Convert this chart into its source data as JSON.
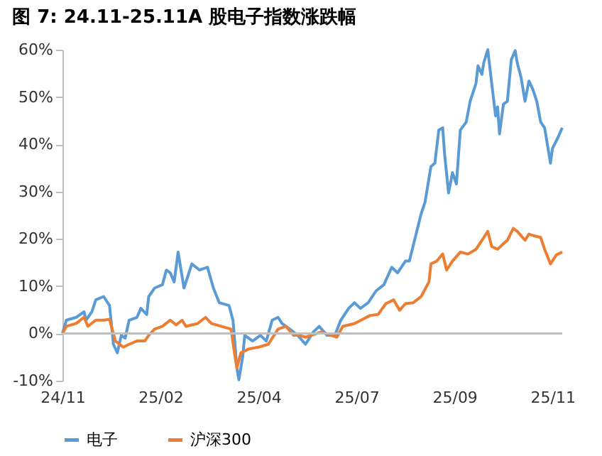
{
  "chart_data": {
    "type": "line",
    "title": "图 7: 24.11-25.11A 股电子指数涨跌幅",
    "categories": [
      "24/11",
      null,
      null,
      null,
      null,
      null,
      null,
      null,
      null,
      null,
      null,
      null,
      null,
      null,
      null,
      null,
      null,
      null,
      null,
      null,
      null,
      null,
      null,
      null,
      null,
      null,
      null,
      null,
      null,
      null,
      null,
      null,
      null,
      null,
      null,
      null,
      null,
      null,
      null,
      null,
      null,
      null,
      null,
      null,
      null,
      null,
      null,
      null,
      null,
      null,
      "25/02",
      null,
      null,
      null,
      null,
      null,
      null,
      null,
      null,
      null,
      null,
      null,
      null,
      null,
      null,
      null,
      null,
      null,
      null,
      null,
      null,
      null,
      null,
      null,
      null,
      null,
      null,
      null,
      null,
      null,
      null,
      null,
      null,
      null,
      null,
      null,
      null,
      null,
      null,
      null,
      null,
      null,
      null,
      null,
      null,
      null,
      null,
      null,
      null,
      null,
      "25/04",
      null,
      null,
      null,
      null,
      null,
      null,
      null,
      null,
      null,
      null,
      null,
      null,
      null,
      null,
      null,
      null,
      null,
      null,
      null,
      null,
      null,
      null,
      null,
      null,
      null,
      null,
      null,
      null,
      null,
      null,
      null,
      null,
      null,
      null,
      null,
      null,
      null,
      null,
      null,
      null,
      null,
      null,
      null,
      null,
      null,
      null,
      null,
      null,
      null,
      "25/07",
      null,
      null,
      null,
      null,
      null,
      null,
      null,
      null,
      null,
      null,
      null,
      null,
      null,
      null,
      null,
      null,
      null,
      null,
      null,
      null,
      null,
      null,
      null,
      null,
      null,
      null,
      null,
      null,
      null,
      null,
      null,
      null,
      null,
      null,
      null,
      null,
      null,
      null,
      null,
      null,
      null,
      null,
      null,
      null,
      null,
      null,
      null,
      null,
      null,
      "25/09",
      null,
      null,
      null,
      null,
      null,
      null,
      null,
      null,
      null,
      null,
      null,
      null,
      null,
      null,
      null,
      null,
      null,
      null,
      null,
      null,
      null,
      null,
      null,
      null,
      null,
      null,
      null,
      null,
      null,
      null,
      null,
      null,
      null,
      null,
      null,
      null,
      null,
      null,
      null,
      null,
      null,
      null,
      null,
      null,
      null,
      null,
      null,
      null,
      null,
      "25/11",
      null,
      null,
      null,
      null,
      null
    ],
    "ylim": [
      -10,
      60
    ],
    "yticks": [
      {
        "value": -10,
        "label": "-10%"
      },
      {
        "value": 0,
        "label": "0%"
      },
      {
        "value": 10,
        "label": "10%"
      },
      {
        "value": 20,
        "label": "20%"
      },
      {
        "value": 30,
        "label": "30%"
      },
      {
        "value": 40,
        "label": "40%"
      },
      {
        "value": 50,
        "label": "50%"
      },
      {
        "value": 60,
        "label": "60%"
      }
    ],
    "grid": false,
    "legend": "bottom",
    "line_style": "solid",
    "marker": "none",
    "ref_lines": [
      {
        "axis": "y",
        "value": 0,
        "color": "#bfbfbf"
      }
    ],
    "series": [
      {
        "name": "电子",
        "color": "#5b9bd5",
        "values": [
          0,
          null,
          2.8,
          null,
          null,
          null,
          null,
          3.4,
          null,
          null,
          null,
          4.6,
          2.8,
          null,
          null,
          4.6,
          null,
          7.1,
          null,
          null,
          null,
          7.8,
          null,
          null,
          5.9,
          null,
          -2.3,
          null,
          -4.1,
          null,
          -0.4,
          null,
          -1,
          null,
          2.8,
          null,
          null,
          null,
          3.4,
          null,
          5.3,
          null,
          null,
          4,
          7.8,
          null,
          null,
          9.6,
          null,
          null,
          null,
          10.3,
          null,
          13.4,
          null,
          12.8,
          null,
          10.9,
          null,
          17.2,
          null,
          null,
          9.6,
          null,
          null,
          null,
          14.7,
          null,
          null,
          null,
          13.4,
          null,
          null,
          null,
          14,
          null,
          null,
          9.6,
          null,
          null,
          6.5,
          null,
          null,
          null,
          null,
          5.9,
          null,
          2.8,
          null,
          -7.3,
          -9.8,
          null,
          -4.8,
          -0.4,
          null,
          null,
          null,
          -1.6,
          null,
          null,
          null,
          -0.4,
          null,
          null,
          -1.6,
          null,
          null,
          2.8,
          null,
          null,
          3.4,
          null,
          2.1,
          null,
          null,
          null,
          0.9,
          null,
          null,
          null,
          -0.4,
          null,
          null,
          null,
          -2.3,
          null,
          null,
          null,
          0.3,
          null,
          null,
          1.5,
          null,
          null,
          null,
          -0.4,
          null,
          null,
          null,
          -0.4,
          null,
          null,
          2.8,
          null,
          null,
          null,
          5.3,
          null,
          null,
          6.5,
          null,
          null,
          5.3,
          null,
          null,
          null,
          6.5,
          null,
          null,
          null,
          9,
          null,
          null,
          null,
          10.3,
          null,
          null,
          null,
          14,
          null,
          null,
          12.8,
          null,
          null,
          null,
          15.3,
          null,
          15.3,
          null,
          null,
          20.3,
          null,
          null,
          25.3,
          null,
          27.8,
          null,
          null,
          35.3,
          null,
          36,
          null,
          43,
          null,
          43.5,
          37.8,
          null,
          29.7,
          null,
          34,
          null,
          31.6,
          null,
          43,
          null,
          null,
          44.7,
          null,
          49.1,
          null,
          null,
          52.9,
          56.6,
          null,
          54.8,
          57.3,
          null,
          60,
          null,
          52.9,
          null,
          46,
          47.9,
          42.2,
          null,
          48.5,
          null,
          49.1,
          null,
          57.9,
          null,
          59.8,
          57.3,
          null,
          54.1,
          null,
          49.1,
          null,
          53.4,
          null,
          51.6,
          null,
          49.1,
          null,
          44.7,
          null,
          43.5,
          null,
          null,
          36,
          39.1,
          null,
          null,
          41.6,
          null,
          43.5
        ]
      },
      {
        "name": "沪深300",
        "color": "#ed7d31",
        "values": [
          0,
          null,
          1.5,
          null,
          null,
          null,
          null,
          2.1,
          null,
          null,
          null,
          3.4,
          null,
          1.5,
          null,
          null,
          null,
          2.8,
          null,
          null,
          null,
          2.8,
          null,
          null,
          3,
          null,
          null,
          -1.6,
          null,
          null,
          null,
          -2.9,
          null,
          null,
          -2.3,
          null,
          null,
          null,
          -1.6,
          null,
          null,
          null,
          -1.6,
          null,
          -0.4,
          null,
          null,
          0.9,
          null,
          null,
          null,
          1.5,
          null,
          null,
          null,
          2.8,
          null,
          null,
          1.8,
          null,
          null,
          2.8,
          null,
          1.5,
          null,
          null,
          null,
          null,
          null,
          2.1,
          null,
          null,
          null,
          3.4,
          null,
          null,
          2.1,
          null,
          null,
          null,
          null,
          1.5,
          null,
          null,
          null,
          null,
          0.9,
          null,
          -4.8,
          -7.3,
          null,
          -4.1,
          null,
          null,
          null,
          -3.3,
          null,
          null,
          null,
          null,
          -2.9,
          null,
          null,
          null,
          null,
          -2.3,
          null,
          null,
          null,
          null,
          0.9,
          null,
          null,
          null,
          1.5,
          null,
          null,
          null,
          -0.4,
          null,
          null,
          -0.4,
          null,
          null,
          -0.8,
          null,
          null,
          null,
          null,
          null,
          null,
          null,
          0.3,
          null,
          null,
          null,
          null,
          null,
          null,
          null,
          -0.8,
          null,
          null,
          1.5,
          null,
          null,
          null,
          null,
          null,
          2.1,
          null,
          null,
          null,
          null,
          null,
          null,
          null,
          3.8,
          null,
          null,
          null,
          4,
          null,
          null,
          null,
          6.3,
          null,
          null,
          null,
          7.1,
          null,
          null,
          4.9,
          null,
          null,
          6.3,
          null,
          null,
          null,
          6.5,
          null,
          null,
          null,
          7.8,
          null,
          null,
          null,
          10.9,
          14.7,
          null,
          null,
          15.3,
          null,
          null,
          16.8,
          null,
          13.4,
          null,
          null,
          15.3,
          null,
          null,
          null,
          17.2,
          null,
          null,
          null,
          16.8,
          null,
          null,
          null,
          17.8,
          null,
          null,
          null,
          20.3,
          null,
          21.6,
          null,
          18.4,
          null,
          null,
          17.8,
          null,
          null,
          19,
          null,
          19.7,
          null,
          null,
          22.2,
          null,
          21.6,
          null,
          null,
          null,
          19.7,
          null,
          21,
          null,
          null,
          20.6,
          null,
          null,
          20.3,
          null,
          17.8,
          null,
          null,
          14.7,
          null,
          null,
          16.6,
          null,
          null,
          17.2
        ]
      }
    ]
  }
}
